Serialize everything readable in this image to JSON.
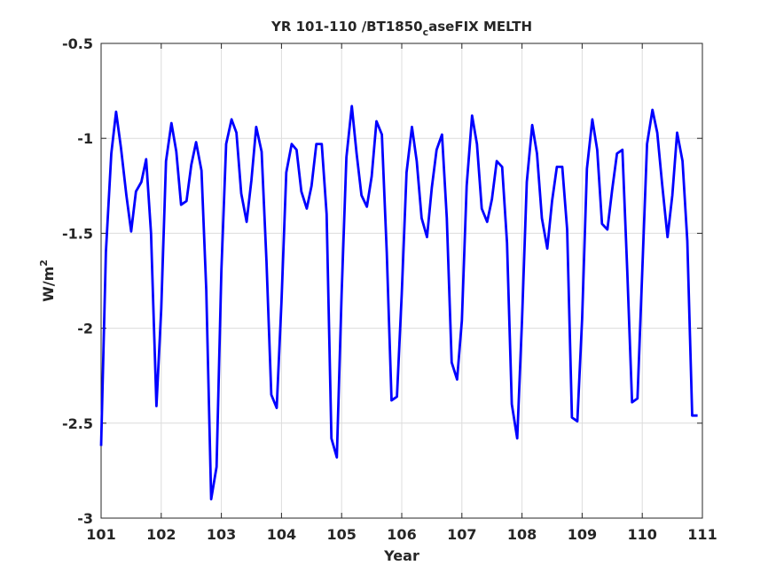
{
  "chart_data": {
    "type": "line",
    "title": {
      "main": "YR 101-110 /BT1850",
      "subscript": "c",
      "rest": "aseFIX MELTH"
    },
    "xlabel": "Year",
    "ylabel": {
      "main": "W/m",
      "superscript": "2"
    },
    "xlim": [
      101,
      111
    ],
    "ylim": [
      -3,
      -0.5
    ],
    "xticks": [
      "101",
      "102",
      "103",
      "104",
      "105",
      "106",
      "107",
      "108",
      "109",
      "110",
      "111"
    ],
    "yticks": [
      "-0.5",
      "-1",
      "-1.5",
      "-2",
      "-2.5",
      "-3"
    ],
    "grid": true,
    "line_color": "#0000ff",
    "series": [
      {
        "x": [
          101.0,
          101.08,
          101.17,
          101.25,
          101.33,
          101.42,
          101.5,
          101.58,
          101.67,
          101.75,
          101.83,
          101.92,
          102.0,
          102.08,
          102.17,
          102.25,
          102.33,
          102.42,
          102.5,
          102.58,
          102.67,
          102.75,
          102.83,
          102.92,
          103.0,
          103.08,
          103.17,
          103.25,
          103.33,
          103.42,
          103.5,
          103.58,
          103.67,
          103.75,
          103.83,
          103.92,
          104.0,
          104.08,
          104.17,
          104.25,
          104.33,
          104.42,
          104.5,
          104.58,
          104.67,
          104.75,
          104.83,
          104.92,
          105.0,
          105.08,
          105.17,
          105.25,
          105.33,
          105.42,
          105.5,
          105.58,
          105.67,
          105.75,
          105.83,
          105.92,
          106.0,
          106.08,
          106.17,
          106.25,
          106.33,
          106.42,
          106.5,
          106.58,
          106.67,
          106.75,
          106.83,
          106.92,
          107.0,
          107.08,
          107.17,
          107.25,
          107.33,
          107.42,
          107.5,
          107.58,
          107.67,
          107.75,
          107.83,
          107.92,
          108.0,
          108.08,
          108.17,
          108.25,
          108.33,
          108.42,
          108.5,
          108.58,
          108.67,
          108.75,
          108.83,
          108.92,
          109.0,
          109.08,
          109.17,
          109.25,
          109.33,
          109.42,
          109.5,
          109.58,
          109.67,
          109.75,
          109.83,
          109.92,
          110.0,
          110.08,
          110.17,
          110.25,
          110.33,
          110.42,
          110.5,
          110.58,
          110.67,
          110.75,
          110.83,
          110.92
        ],
        "values": [
          -2.62,
          -1.6,
          -1.08,
          -0.86,
          -1.05,
          -1.3,
          -1.49,
          -1.28,
          -1.23,
          -1.11,
          -1.5,
          -2.41,
          -1.9,
          -1.12,
          -0.92,
          -1.07,
          -1.35,
          -1.33,
          -1.14,
          -1.02,
          -1.17,
          -1.8,
          -2.9,
          -2.73,
          -1.7,
          -1.03,
          -0.9,
          -0.97,
          -1.29,
          -1.44,
          -1.22,
          -0.94,
          -1.07,
          -1.65,
          -2.35,
          -2.42,
          -1.86,
          -1.18,
          -1.03,
          -1.06,
          -1.28,
          -1.37,
          -1.25,
          -1.03,
          -1.03,
          -1.4,
          -2.58,
          -2.68,
          -1.82,
          -1.1,
          -0.83,
          -1.08,
          -1.3,
          -1.36,
          -1.2,
          -0.91,
          -0.98,
          -1.6,
          -2.38,
          -2.36,
          -1.82,
          -1.18,
          -0.94,
          -1.12,
          -1.42,
          -1.52,
          -1.26,
          -1.06,
          -0.98,
          -1.42,
          -2.18,
          -2.27,
          -1.96,
          -1.25,
          -0.88,
          -1.03,
          -1.37,
          -1.44,
          -1.32,
          -1.12,
          -1.15,
          -1.55,
          -2.4,
          -2.58,
          -1.96,
          -1.23,
          -0.93,
          -1.08,
          -1.42,
          -1.58,
          -1.33,
          -1.15,
          -1.15,
          -1.48,
          -2.47,
          -2.49,
          -1.95,
          -1.16,
          -0.9,
          -1.06,
          -1.45,
          -1.48,
          -1.27,
          -1.08,
          -1.06,
          -1.7,
          -2.39,
          -2.37,
          -1.7,
          -1.03,
          -0.85,
          -0.97,
          -1.24,
          -1.52,
          -1.3,
          -0.97,
          -1.12,
          -1.54,
          -2.46,
          -2.46
        ]
      }
    ]
  }
}
